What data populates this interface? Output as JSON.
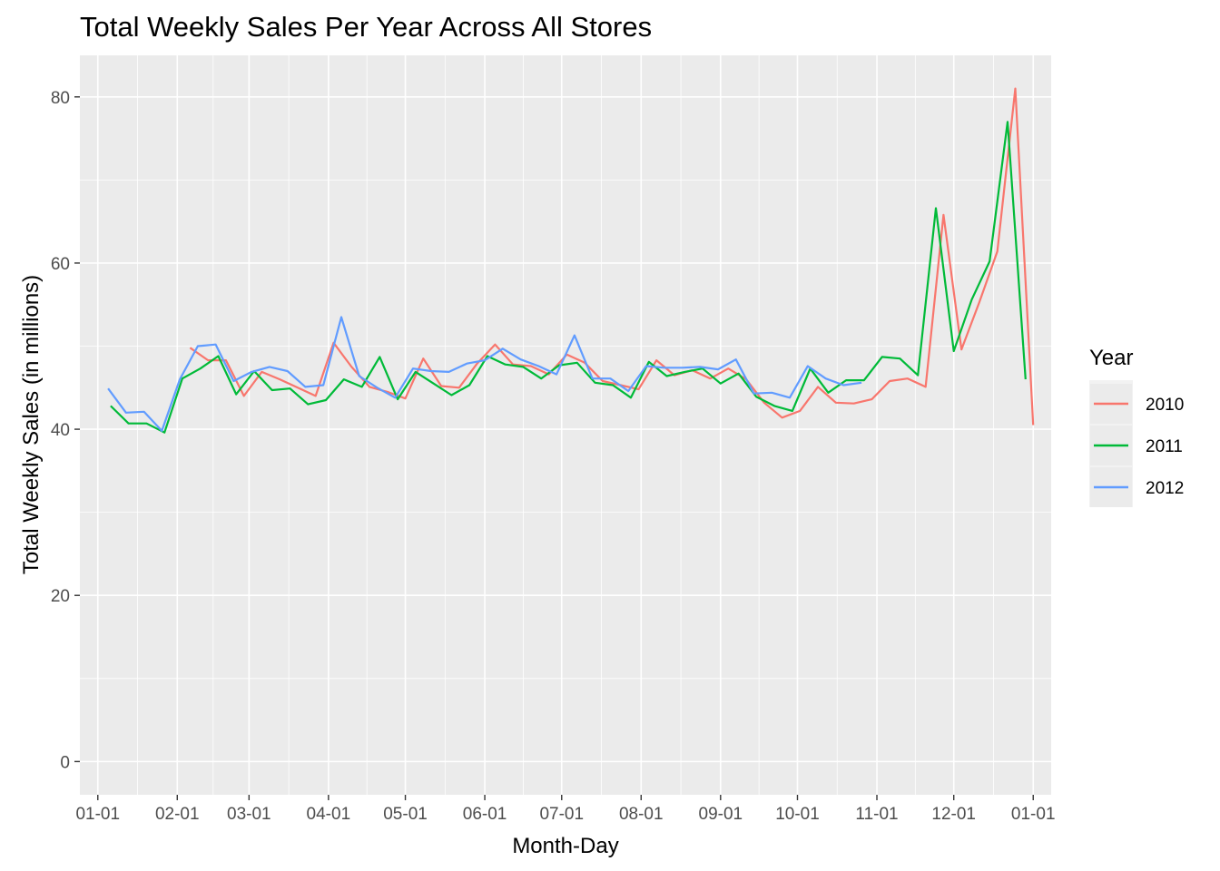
{
  "chart_data": {
    "type": "line",
    "title": "Total Weekly Sales Per Year Across All Stores",
    "xlabel": "Month-Day",
    "ylabel": "Total Weekly Sales (in millions)",
    "x_unit": "day of year",
    "xlim": [
      -7,
      372
    ],
    "ylim": [
      -4,
      85
    ],
    "x_ticks": [
      {
        "label": "01-01",
        "value": 0
      },
      {
        "label": "02-01",
        "value": 31
      },
      {
        "label": "03-01",
        "value": 59
      },
      {
        "label": "04-01",
        "value": 90
      },
      {
        "label": "05-01",
        "value": 120
      },
      {
        "label": "06-01",
        "value": 151
      },
      {
        "label": "07-01",
        "value": 181
      },
      {
        "label": "08-01",
        "value": 212
      },
      {
        "label": "09-01",
        "value": 243
      },
      {
        "label": "10-01",
        "value": 273
      },
      {
        "label": "11-01",
        "value": 304
      },
      {
        "label": "12-01",
        "value": 334
      },
      {
        "label": "01-01",
        "value": 365
      }
    ],
    "y_ticks": [
      {
        "label": "0",
        "value": 0
      },
      {
        "label": "20",
        "value": 20
      },
      {
        "label": "40",
        "value": 40
      },
      {
        "label": "60",
        "value": 60
      },
      {
        "label": "80",
        "value": 80
      }
    ],
    "grid": true,
    "legend": {
      "title": "Year",
      "position": "right"
    },
    "series": [
      {
        "name": "2010",
        "color": "#F8766D",
        "x": [
          36,
          43,
          50,
          57,
          64,
          71,
          78,
          85,
          92,
          99,
          106,
          113,
          120,
          127,
          134,
          141,
          148,
          155,
          162,
          169,
          176,
          183,
          190,
          197,
          204,
          211,
          218,
          225,
          232,
          239,
          246,
          253,
          260,
          267,
          274,
          281,
          288,
          295,
          302,
          309,
          316,
          323,
          330,
          337,
          344,
          351,
          358,
          365
        ],
        "y": [
          49.8,
          48.3,
          48.3,
          44.0,
          46.9,
          46.0,
          45.0,
          44.0,
          50.4,
          47.5,
          45.1,
          44.5,
          43.7,
          48.5,
          45.2,
          45.0,
          47.9,
          50.2,
          47.8,
          47.6,
          46.6,
          49.0,
          48.0,
          45.8,
          45.3,
          44.8,
          48.3,
          46.5,
          47.1,
          46.1,
          47.3,
          46.0,
          43.2,
          41.4,
          42.2,
          45.1,
          43.2,
          43.1,
          43.6,
          45.8,
          46.1,
          45.1,
          65.8,
          49.6,
          55.3,
          61.4,
          81.0,
          40.5
        ]
      },
      {
        "name": "2011",
        "color": "#00BA38",
        "x": [
          5,
          12,
          19,
          26,
          33,
          40,
          47,
          54,
          61,
          68,
          75,
          82,
          89,
          96,
          103,
          110,
          117,
          124,
          131,
          138,
          145,
          152,
          159,
          166,
          173,
          180,
          187,
          194,
          201,
          208,
          215,
          222,
          229,
          236,
          243,
          250,
          257,
          264,
          271,
          278,
          285,
          292,
          299,
          306,
          313,
          320,
          327,
          334,
          341,
          348,
          355,
          362
        ],
        "y": [
          42.8,
          40.7,
          40.7,
          39.6,
          46.1,
          47.3,
          48.8,
          44.2,
          47.0,
          44.7,
          44.9,
          43.0,
          43.5,
          46.0,
          45.1,
          48.7,
          43.6,
          46.9,
          45.5,
          44.1,
          45.3,
          48.8,
          47.8,
          47.5,
          46.1,
          47.7,
          48.0,
          45.6,
          45.3,
          43.8,
          48.1,
          46.4,
          46.9,
          47.3,
          45.5,
          46.7,
          43.9,
          42.8,
          42.2,
          47.3,
          44.4,
          45.9,
          45.9,
          48.7,
          48.5,
          46.5,
          66.6,
          49.4,
          55.6,
          60.2,
          77.0,
          46.0
        ]
      },
      {
        "name": "2012",
        "color": "#619CFF",
        "x": [
          4,
          11,
          18,
          25,
          32,
          39,
          46,
          53,
          60,
          67,
          74,
          81,
          88,
          95,
          102,
          109,
          116,
          123,
          130,
          137,
          144,
          151,
          158,
          165,
          172,
          179,
          186,
          193,
          200,
          207,
          214,
          221,
          228,
          235,
          242,
          249,
          256,
          263,
          270,
          277,
          284,
          291,
          298
        ],
        "y": [
          44.9,
          42.0,
          42.1,
          39.8,
          46.0,
          50.0,
          50.2,
          45.8,
          46.9,
          47.5,
          47.0,
          45.1,
          45.3,
          53.5,
          46.4,
          45.0,
          43.8,
          47.3,
          47.0,
          46.9,
          47.9,
          48.3,
          49.7,
          48.4,
          47.6,
          46.6,
          51.3,
          46.1,
          46.1,
          44.6,
          47.6,
          47.4,
          47.4,
          47.5,
          47.2,
          48.4,
          44.3,
          44.4,
          43.8,
          47.6,
          46.1,
          45.3,
          45.6
        ]
      }
    ]
  }
}
